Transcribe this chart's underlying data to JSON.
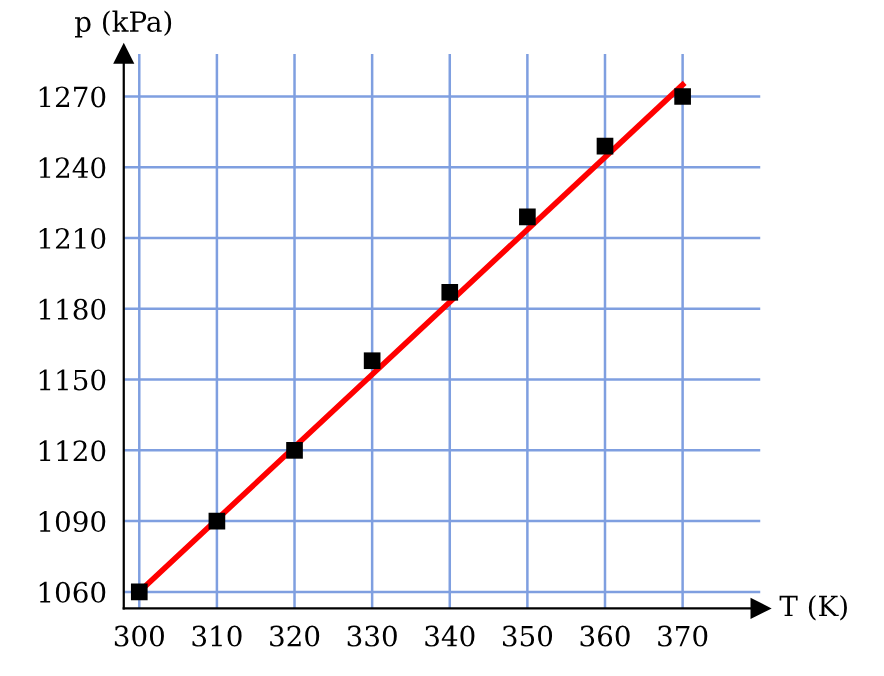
{
  "chart_data": {
    "type": "scatter",
    "xlabel": "T (K)",
    "ylabel": "p (kPa)",
    "x": [
      300,
      310,
      320,
      330,
      340,
      350,
      360,
      370
    ],
    "series": [
      {
        "color": "#000000",
        "marker": "square",
        "values": [
          1060,
          1090,
          1120,
          1158,
          1187,
          1219,
          1249,
          1270
        ]
      },
      {
        "type": "line",
        "color": "#ff0000",
        "x": [
          300,
          370
        ],
        "values": [
          1060,
          1275
        ],
        "marker": "none",
        "line_style": "solid"
      }
    ],
    "xlim": [
      298,
      380
    ],
    "ylim": [
      1053,
      1288
    ],
    "xticks": [
      300,
      310,
      320,
      330,
      340,
      350,
      360,
      370
    ],
    "yticks": [
      1060,
      1090,
      1120,
      1150,
      1180,
      1210,
      1240,
      1270
    ],
    "grid": true,
    "legend": false
  }
}
